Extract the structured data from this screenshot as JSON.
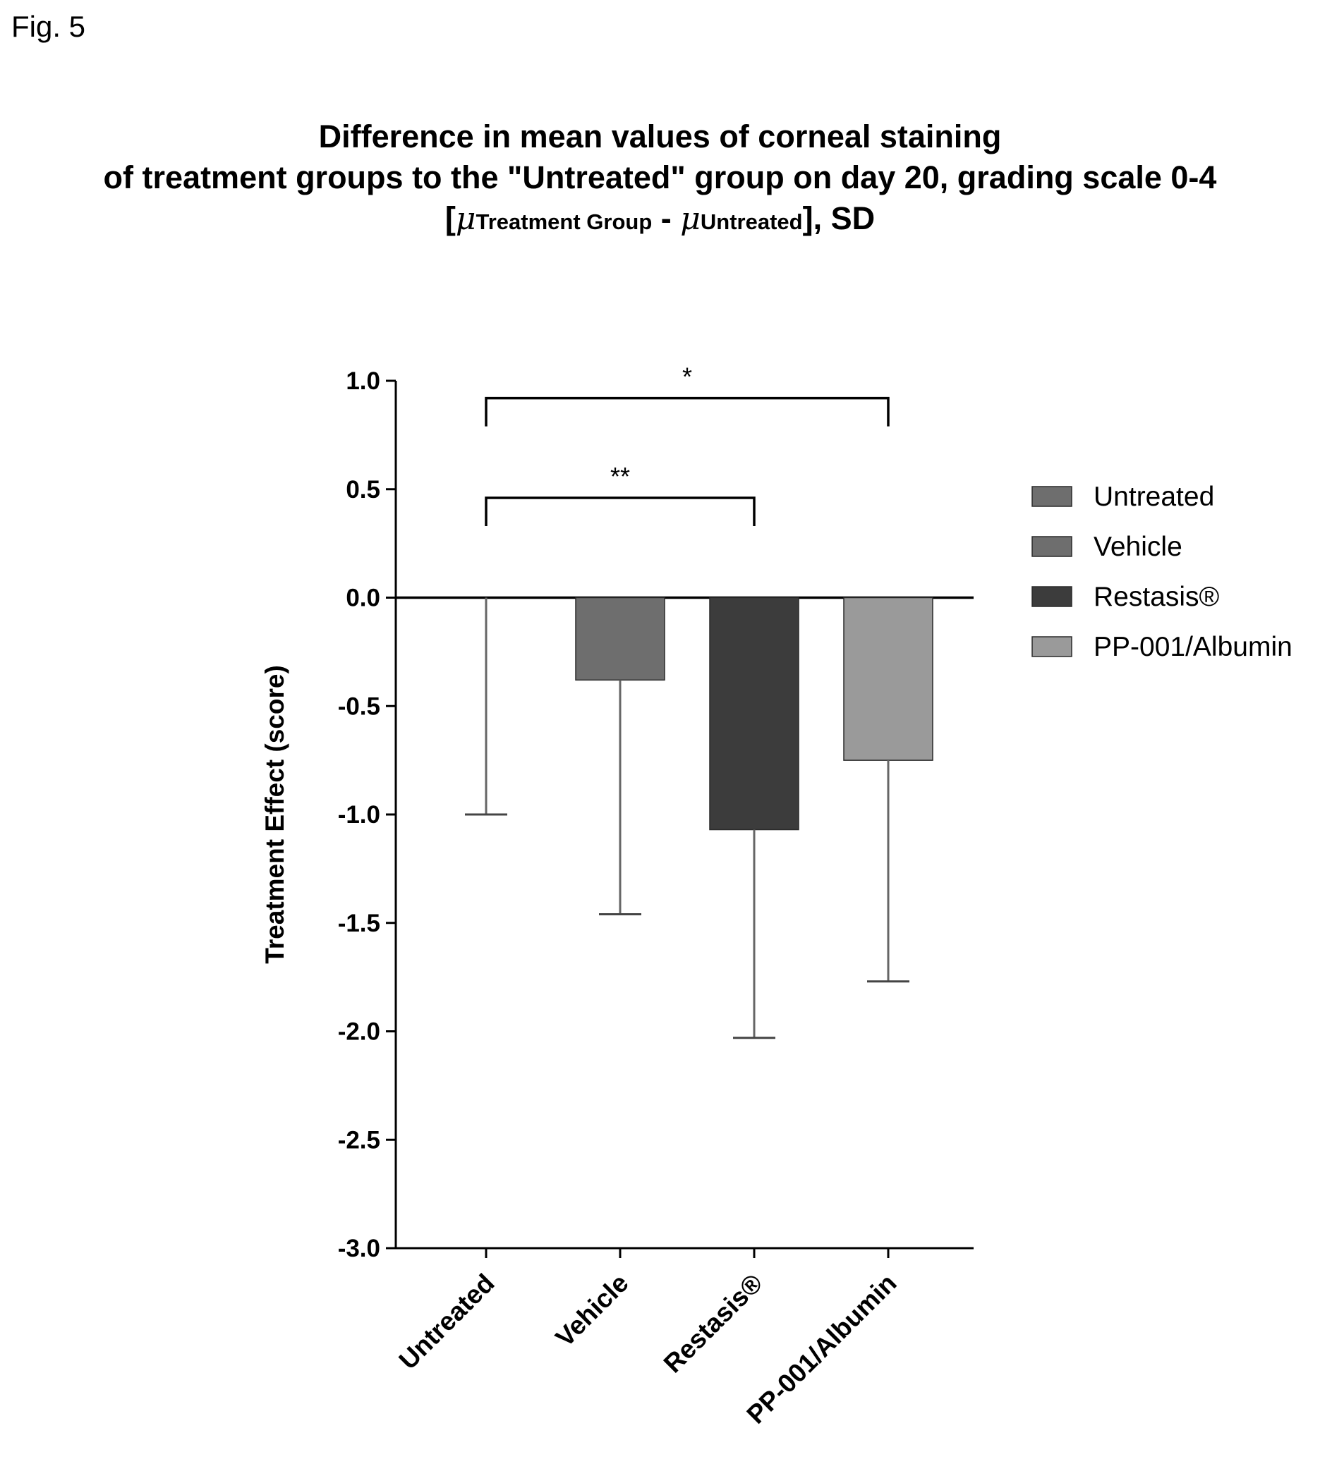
{
  "figure_label": "Fig. 5",
  "title": {
    "line1": "Difference in mean values of corneal staining",
    "line2": "of treatment groups to the \"Untreated\" group on day 20, grading scale 0-4",
    "line3": {
      "open": "[",
      "mu1": "μ",
      "sub1": "Treatment Group",
      "dash": " - ",
      "mu2": "μ",
      "sub2": "Untreated",
      "close": "], SD"
    }
  },
  "chart_data": {
    "type": "bar",
    "categories": [
      "Untreated",
      "Vehicle",
      "Restasis®",
      "PP-001/Albumin"
    ],
    "values": [
      0.0,
      -0.38,
      -1.07,
      -0.75
    ],
    "error_lower": [
      -1.0,
      -1.46,
      -2.03,
      -1.77
    ],
    "ylabel": "Treatment Effect (score)",
    "xlabel": "",
    "ylim": [
      -3.0,
      1.0
    ],
    "yticks": [
      1.0,
      0.5,
      0.0,
      -0.5,
      -1.0,
      -1.5,
      -2.0,
      -2.5,
      -3.0
    ],
    "ytick_labels": [
      "1.0",
      "0.5",
      "0.0",
      "-0.5",
      "-1.0",
      "-1.5",
      "-2.0",
      "-2.5",
      "-3.0"
    ],
    "colors": [
      "#6e6e6e",
      "#6e6e6e",
      "#3c3c3c",
      "#9a9a9a"
    ],
    "legend": {
      "placement": "right",
      "entries": [
        "Untreated",
        "Vehicle",
        "Restasis®",
        "PP-001/Albumin"
      ]
    },
    "significance": [
      {
        "from": 0,
        "to": 3,
        "level": 0.92,
        "label": "*"
      },
      {
        "from": 0,
        "to": 2,
        "level": 0.46,
        "label": "**"
      }
    ],
    "grid": false
  }
}
